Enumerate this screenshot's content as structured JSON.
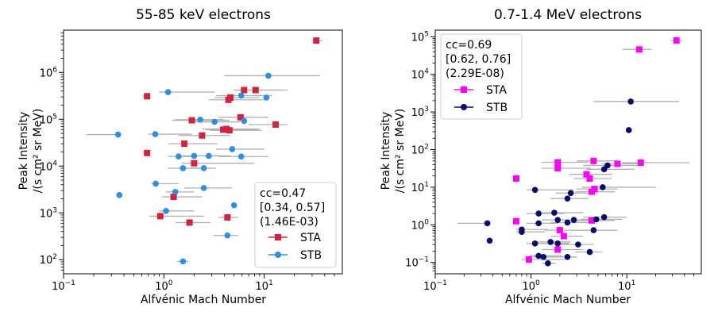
{
  "chart_data": [
    {
      "type": "scatter",
      "title": "55-85 keV electrons",
      "xlabel": "Alfvénic Mach Number",
      "ylabel_lines": [
        "Peak Intensity",
        "/(s cm² sr MeV)"
      ],
      "xscale": "log",
      "yscale": "log",
      "xlim": [
        0.1,
        60
      ],
      "ylim": [
        50,
        8000000
      ],
      "xticks": [
        {
          "v": 0.1,
          "m": "10",
          "e": "−1"
        },
        {
          "v": 1,
          "m": "10",
          "e": "0"
        },
        {
          "v": 10,
          "m": "10",
          "e": "1"
        }
      ],
      "yticks": [
        {
          "v": 100,
          "m": "10",
          "e": "2"
        },
        {
          "v": 1000,
          "m": "10",
          "e": "3"
        },
        {
          "v": 10000,
          "m": "10",
          "e": "4"
        },
        {
          "v": 100000,
          "m": "10",
          "e": "5"
        },
        {
          "v": 1000000,
          "m": "10",
          "e": "6"
        }
      ],
      "legend_position": "bottom-right",
      "annotation": [
        "cc=0.47",
        "[0.34, 0.57]",
        "(1.46E-03)"
      ],
      "series": [
        {
          "name": "STA",
          "color": "#d62040",
          "marker": "square",
          "points": [
            {
              "x": 33,
              "y": 4800000,
              "xerr": [
                30,
                38
              ]
            },
            {
              "x": 6.3,
              "y": 420000,
              "xerr": [
                5,
                15
              ]
            },
            {
              "x": 8.2,
              "y": 420000,
              "xerr": [
                5.5,
                17
              ]
            },
            {
              "x": 4.6,
              "y": 290000,
              "xerr": [
                3.2,
                9
              ]
            },
            {
              "x": 4.4,
              "y": 260000,
              "xerr": [
                2.8,
                10
              ]
            },
            {
              "x": 0.68,
              "y": 310000
            },
            {
              "x": 1.9,
              "y": 95000,
              "xerr": [
                1.2,
                4.5
              ]
            },
            {
              "x": 5.8,
              "y": 110000,
              "xerr": [
                3.5,
                11
              ]
            },
            {
              "x": 4.2,
              "y": 62000,
              "xerr": [
                2.4,
                9
              ]
            },
            {
              "x": 4.5,
              "y": 58000,
              "xerr": [
                2.9,
                9.5
              ]
            },
            {
              "x": 3.9,
              "y": 60000,
              "xerr": [
                2.6,
                8.5
              ]
            },
            {
              "x": 2.4,
              "y": 45000,
              "xerr": [
                1.4,
                4.6
              ]
            },
            {
              "x": 13,
              "y": 77000,
              "xerr": [
                7,
                17
              ]
            },
            {
              "x": 0.68,
              "y": 19000
            },
            {
              "x": 1.6,
              "y": 30000,
              "xerr": [
                1.1,
                3.4
              ]
            },
            {
              "x": 2.0,
              "y": 11500,
              "xerr": [
                1.5,
                8
              ]
            },
            {
              "x": 1.25,
              "y": 2200,
              "xerr": [
                0.95,
                2.4
              ]
            },
            {
              "x": 0.92,
              "y": 850,
              "xerr": [
                0.72,
                2.5
              ]
            },
            {
              "x": 1.8,
              "y": 620,
              "xerr": [
                1.3,
                2.9
              ]
            },
            {
              "x": 4.3,
              "y": 800,
              "xerr": [
                3.5,
                5.5
              ]
            }
          ]
        },
        {
          "name": "STB",
          "color": "#2b8fe6",
          "marker": "circle",
          "points": [
            {
              "x": 11,
              "y": 850000,
              "xerr": [
                4,
                36
              ]
            },
            {
              "x": 1.1,
              "y": 380000,
              "xerr": [
                0.9,
                3.2
              ]
            },
            {
              "x": 5.9,
              "y": 320000,
              "xerr": [
                3.3,
                12
              ]
            },
            {
              "x": 10.5,
              "y": 290000
            },
            {
              "x": 2.3,
              "y": 98000,
              "xerr": [
                1.3,
                4
              ]
            },
            {
              "x": 3.2,
              "y": 88000,
              "xerr": [
                1.9,
                5.8
              ]
            },
            {
              "x": 6.3,
              "y": 92000
            },
            {
              "x": 0.35,
              "y": 47000,
              "xerr": [
                0.17,
                0.36
              ]
            },
            {
              "x": 0.82,
              "y": 48000,
              "xerr": [
                0.7,
                1.9
              ]
            },
            {
              "x": 4.8,
              "y": 23000,
              "xerr": [
                3.3,
                10
              ]
            },
            {
              "x": 5.9,
              "y": 16000,
              "xerr": [
                3.5,
                11
              ]
            },
            {
              "x": 1.4,
              "y": 16000,
              "xerr": [
                1.1,
                2.1
              ]
            },
            {
              "x": 2.0,
              "y": 16500,
              "xerr": [
                1.5,
                3.3
              ]
            },
            {
              "x": 2.8,
              "y": 16500,
              "xerr": [
                2.2,
                4.6
              ]
            },
            {
              "x": 1.55,
              "y": 9000,
              "xerr": [
                1.1,
                2.6
              ]
            },
            {
              "x": 2.5,
              "y": 9000,
              "xerr": [
                1.8,
                3.3
              ]
            },
            {
              "x": 0.83,
              "y": 4200,
              "xerr": [
                0.75,
                1.4
              ]
            },
            {
              "x": 1.3,
              "y": 2800,
              "xerr": [
                1.05,
                2
              ]
            },
            {
              "x": 2.5,
              "y": 3400,
              "xerr": [
                1.6,
                4.8
              ]
            },
            {
              "x": 0.36,
              "y": 2400
            },
            {
              "x": 1.05,
              "y": 1100,
              "xerr": [
                0.9,
                2
              ]
            },
            {
              "x": 5.0,
              "y": 1450
            },
            {
              "x": 4.3,
              "y": 330,
              "xerr": [
                3.1,
                5.5
              ]
            },
            {
              "x": 1.55,
              "y": 92,
              "xerr": [
                1.35,
                1.75
              ]
            }
          ]
        }
      ]
    },
    {
      "type": "scatter",
      "title": "0.7-1.4 MeV electrons",
      "xlabel": "Alfvénic Mach Number",
      "ylabel_lines": [
        "Peak Intensity",
        "/(s cm² sr MeV)"
      ],
      "xscale": "log",
      "yscale": "log",
      "xlim": [
        0.1,
        60
      ],
      "ylim": [
        0.05,
        150000
      ],
      "xticks": [
        {
          "v": 0.1,
          "m": "10",
          "e": "−1"
        },
        {
          "v": 1,
          "m": "10",
          "e": "0"
        },
        {
          "v": 10,
          "m": "10",
          "e": "1"
        }
      ],
      "yticks": [
        {
          "v": 0.1,
          "m": "10",
          "e": "−1"
        },
        {
          "v": 1,
          "m": "10",
          "e": "0"
        },
        {
          "v": 10,
          "m": "10",
          "e": "1"
        },
        {
          "v": 100,
          "m": "10",
          "e": "2"
        },
        {
          "v": 1000,
          "m": "10",
          "e": "3"
        },
        {
          "v": 10000,
          "m": "10",
          "e": "4"
        },
        {
          "v": 100000,
          "m": "10",
          "e": "5"
        }
      ],
      "legend_position": "top-left",
      "annotation": [
        "cc=0.69",
        "[0.62, 0.76]",
        "(2.29E-08)"
      ],
      "series": [
        {
          "name": "STA",
          "color": "#ff00ff",
          "marker": "square",
          "points": [
            {
              "x": 33,
              "y": 80000,
              "xerr": [
                29,
                38
              ]
            },
            {
              "x": 13.5,
              "y": 46000,
              "xerr": [
                9,
                18
              ]
            },
            {
              "x": 14,
              "y": 45,
              "xerr": [
                9,
                45
              ]
            },
            {
              "x": 8,
              "y": 42,
              "xerr": [
                5.5,
                13
              ]
            },
            {
              "x": 4.5,
              "y": 50,
              "xerr": [
                3,
                8
              ]
            },
            {
              "x": 1.9,
              "y": 46,
              "xerr": [
                1.3,
                4
              ]
            },
            {
              "x": 1.9,
              "y": 32,
              "xerr": [
                1.3,
                4.2
              ]
            },
            {
              "x": 3.8,
              "y": 22,
              "xerr": [
                2.5,
                7
              ]
            },
            {
              "x": 4.1,
              "y": 17,
              "xerr": [
                2.8,
                7
              ]
            },
            {
              "x": 0.7,
              "y": 17
            },
            {
              "x": 4.6,
              "y": 9,
              "xerr": [
                3,
                8
              ]
            },
            {
              "x": 4.3,
              "y": 7.6,
              "xerr": [
                2.9,
                7.5
              ]
            },
            {
              "x": 0.7,
              "y": 1.25
            },
            {
              "x": 4.3,
              "y": 1.3,
              "xerr": [
                3,
                7.5
              ]
            },
            {
              "x": 2.0,
              "y": 0.72,
              "xerr": [
                1.4,
                4
              ]
            },
            {
              "x": 2.2,
              "y": 0.5,
              "xerr": [
                1.6,
                3.5
              ]
            },
            {
              "x": 1.9,
              "y": 0.22,
              "xerr": [
                1.3,
                3.5
              ]
            },
            {
              "x": 0.95,
              "y": 0.12,
              "xerr": [
                0.8,
                2.3
              ]
            }
          ]
        },
        {
          "name": "STB",
          "color": "#0a0a6e",
          "marker": "circle",
          "points": [
            {
              "x": 11,
              "y": 1900,
              "xerr": [
                4.5,
                35
              ]
            },
            {
              "x": 10.5,
              "y": 330
            },
            {
              "x": 6.3,
              "y": 38,
              "xerr": [
                3.5,
                14
              ]
            },
            {
              "x": 5.8,
              "y": 30,
              "xerr": [
                3.8,
                12
              ]
            },
            {
              "x": 5.6,
              "y": 10,
              "xerr": [
                3.4,
                20
              ]
            },
            {
              "x": 2.6,
              "y": 7,
              "xerr": [
                1.8,
                5
              ]
            },
            {
              "x": 2.4,
              "y": 5,
              "xerr": [
                1.6,
                4
              ]
            },
            {
              "x": 1.1,
              "y": 8.5,
              "xerr": [
                0.9,
                2.8
              ]
            },
            {
              "x": 1.75,
              "y": 2.1,
              "xerr": [
                1.3,
                3.5
              ]
            },
            {
              "x": 1.2,
              "y": 2.0,
              "xerr": [
                0.9,
                2.2
              ]
            },
            {
              "x": 5.8,
              "y": 1.6,
              "xerr": [
                3.5,
                10
              ]
            },
            {
              "x": 4.8,
              "y": 1.4,
              "xerr": [
                3.3,
                9
              ]
            },
            {
              "x": 2.4,
              "y": 1.15,
              "xerr": [
                1.6,
                4.5
              ]
            },
            {
              "x": 2.8,
              "y": 1.35,
              "xerr": [
                1.9,
                4.8
              ]
            },
            {
              "x": 1.9,
              "y": 1.35,
              "xerr": [
                1.3,
                3.5
              ]
            },
            {
              "x": 0.35,
              "y": 1.1,
              "xerr": [
                0.17,
                0.36
              ]
            },
            {
              "x": 0.8,
              "y": 0.75,
              "xerr": [
                0.7,
                1.5
              ]
            },
            {
              "x": 0.8,
              "y": 0.65,
              "xerr": [
                0.7,
                1.4
              ]
            },
            {
              "x": 1.2,
              "y": 1.1,
              "xerr": [
                0.9,
                1.9
              ]
            },
            {
              "x": 4.5,
              "y": 0.72,
              "xerr": [
                2.9,
                8
              ]
            },
            {
              "x": 1.6,
              "y": 0.35,
              "xerr": [
                1.1,
                2.6
              ]
            },
            {
              "x": 1.9,
              "y": 0.32,
              "xerr": [
                1.3,
                2.5
              ]
            },
            {
              "x": 0.37,
              "y": 0.38
            },
            {
              "x": 1.1,
              "y": 0.32,
              "xerr": [
                0.9,
                1.4
              ]
            },
            {
              "x": 3.1,
              "y": 0.3,
              "xerr": [
                2,
                4.5
              ]
            },
            {
              "x": 1.35,
              "y": 0.14,
              "xerr": [
                1.05,
                2
              ]
            },
            {
              "x": 1.2,
              "y": 0.15,
              "xerr": [
                0.95,
                2.1
              ]
            },
            {
              "x": 2.4,
              "y": 0.14,
              "xerr": [
                1.8,
                3
              ]
            },
            {
              "x": 4.1,
              "y": 0.19,
              "xerr": [
                2.9,
                5.5
              ]
            },
            {
              "x": 1.5,
              "y": 0.095,
              "xerr": [
                1.3,
                1.8
              ]
            }
          ]
        }
      ]
    }
  ]
}
